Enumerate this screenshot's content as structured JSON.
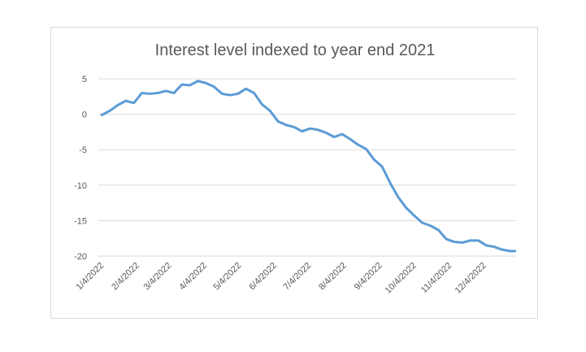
{
  "chart_data": {
    "type": "line",
    "title": "Interest level indexed to year end 2021",
    "xlabel": "",
    "ylabel": "",
    "ylim": [
      -20,
      5
    ],
    "y_ticks": [
      5,
      0,
      -5,
      -10,
      -15,
      -20
    ],
    "grid": true,
    "legend": "none",
    "x_tick_labels": [
      "1/4/2022",
      "2/4/2022",
      "3/4/2022",
      "4/4/2022",
      "5/4/2022",
      "6/4/2022",
      "7/4/2022",
      "8/4/2022",
      "9/4/2022",
      "10/4/2022",
      "11/4/2022",
      "12/4/2022"
    ],
    "series_color": "#5b9bd5",
    "series": [
      {
        "x": [
          "1/4/2022",
          "1/11/2022",
          "1/18/2022",
          "1/25/2022",
          "2/1/2022",
          "2/8/2022",
          "2/15/2022",
          "2/22/2022",
          "3/1/2022",
          "3/8/2022",
          "3/15/2022",
          "3/22/2022",
          "3/29/2022",
          "4/5/2022",
          "4/12/2022",
          "4/19/2022",
          "4/26/2022",
          "5/3/2022",
          "5/10/2022",
          "5/17/2022",
          "5/24/2022",
          "5/31/2022",
          "6/7/2022",
          "6/14/2022",
          "6/21/2022",
          "6/28/2022",
          "7/5/2022",
          "7/12/2022",
          "7/19/2022",
          "7/26/2022",
          "8/2/2022",
          "8/9/2022",
          "8/16/2022",
          "8/23/2022",
          "8/30/2022",
          "9/6/2022",
          "9/13/2022",
          "9/20/2022",
          "9/27/2022",
          "10/4/2022",
          "10/11/2022",
          "10/18/2022",
          "10/25/2022",
          "11/1/2022",
          "11/8/2022",
          "11/15/2022",
          "11/22/2022",
          "11/29/2022",
          "12/6/2022",
          "12/13/2022",
          "12/20/2022",
          "12/27/2022",
          "12/31/2022"
        ],
        "values": [
          -0.1,
          0.5,
          1.3,
          1.9,
          1.6,
          3.0,
          2.9,
          3.0,
          3.3,
          3.0,
          4.2,
          4.1,
          4.7,
          4.4,
          3.9,
          2.9,
          2.7,
          2.9,
          3.6,
          3.0,
          1.4,
          0.5,
          -1.0,
          -1.5,
          -1.8,
          -2.4,
          -2.0,
          -2.2,
          -2.6,
          -3.2,
          -2.8,
          -3.5,
          -4.3,
          -4.9,
          -6.4,
          -7.4,
          -9.7,
          -11.7,
          -13.2,
          -14.3,
          -15.3,
          -15.7,
          -16.3,
          -17.6,
          -18.0,
          -18.1,
          -17.8,
          -17.8,
          -18.5,
          -18.7,
          -19.1,
          -19.3,
          -19.3
        ]
      }
    ]
  }
}
